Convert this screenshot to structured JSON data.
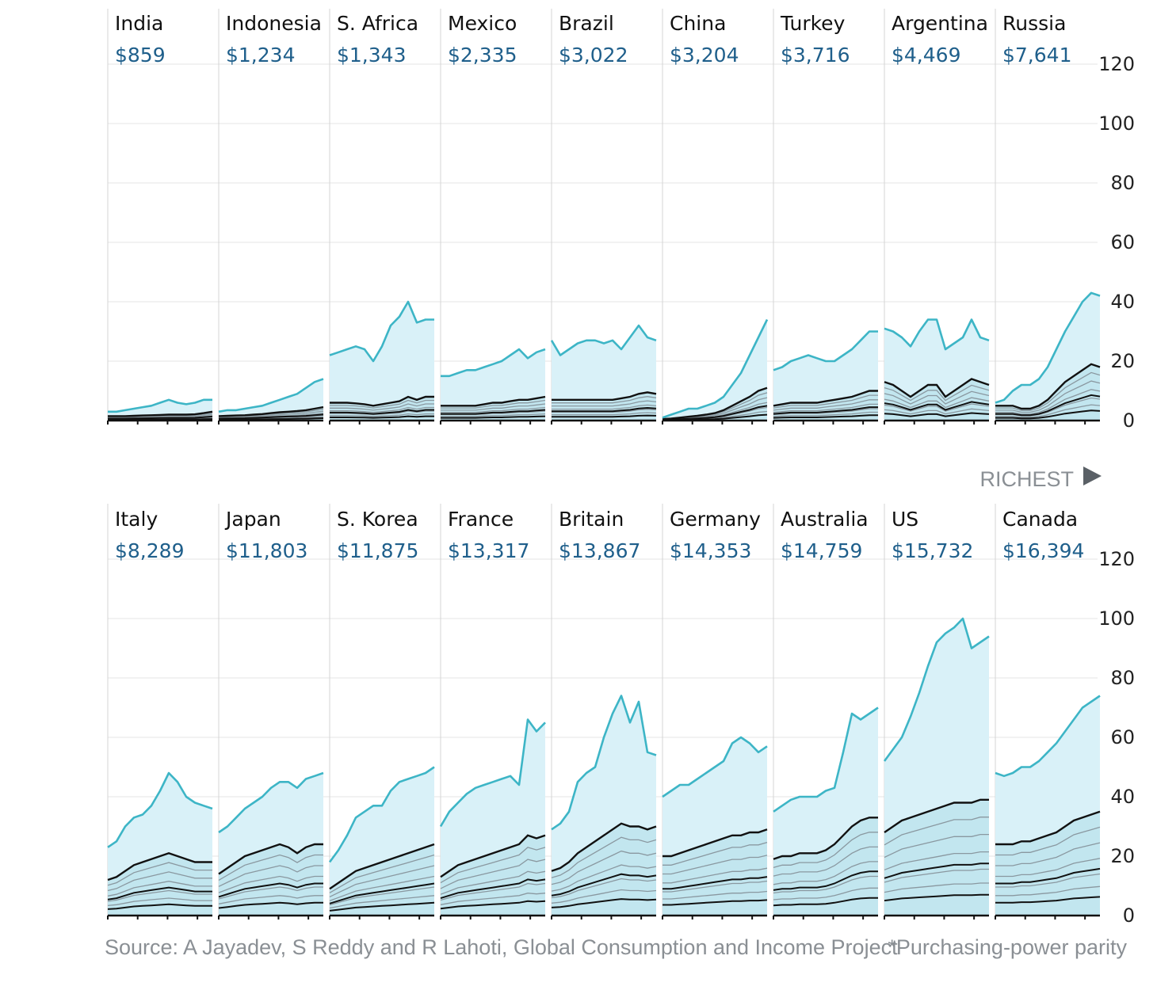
{
  "chart_data": {
    "type": "area",
    "y_ticks": [
      0,
      20,
      40,
      60,
      80,
      100,
      120
    ],
    "ylim": [
      0,
      120
    ],
    "grid": true,
    "richest_label": "RICHEST",
    "colors": {
      "top_line": "#3db5c6",
      "fill": "#d9f1f8",
      "inner_fill": "#c2e6ef",
      "dark_line": "#111111",
      "grey_line": "#8a98a0"
    },
    "source": "Source: A Jayadev, S Reddy and R Lahoti, Global Consumption and Income Project",
    "footnote": "*Purchasing-power parity",
    "rows": [
      {
        "panels": [
          {
            "country": "India",
            "value": "$859",
            "series": [
              [
                3,
                3,
                3.5,
                4,
                4.5,
                5,
                6,
                7,
                6,
                5.5,
                6,
                7,
                7
              ],
              [
                1.5,
                1.5,
                1.5,
                1.6,
                1.7,
                1.8,
                1.9,
                2,
                2,
                2,
                2.1,
                2.5,
                3
              ]
            ]
          },
          {
            "country": "Indonesia",
            "value": "$1,234",
            "series": [
              [
                3,
                3.5,
                3.5,
                4,
                4.5,
                5,
                6,
                7,
                8,
                9,
                11,
                13,
                14
              ],
              [
                1.5,
                1.6,
                1.7,
                1.8,
                2,
                2.2,
                2.5,
                2.8,
                3,
                3.2,
                3.5,
                4,
                4.5
              ]
            ]
          },
          {
            "country": "S. Africa",
            "value": "$1,343",
            "series": [
              [
                22,
                23,
                24,
                25,
                24,
                20,
                25,
                32,
                35,
                40,
                33,
                34,
                34
              ],
              [
                6,
                6,
                6,
                5.8,
                5.5,
                5,
                5.5,
                6,
                6.5,
                8,
                7,
                8,
                8
              ]
            ]
          },
          {
            "country": "Mexico",
            "value": "$2,335",
            "series": [
              [
                15,
                15,
                16,
                17,
                17,
                18,
                19,
                20,
                22,
                24,
                21,
                23,
                24
              ],
              [
                5,
                5,
                5,
                5,
                5,
                5.5,
                6,
                6,
                6.5,
                7,
                7,
                7.5,
                8
              ]
            ]
          },
          {
            "country": "Brazil",
            "value": "$3,022",
            "series": [
              [
                27,
                22,
                24,
                26,
                27,
                27,
                26,
                27,
                24,
                28,
                32,
                28,
                27
              ],
              [
                7,
                7,
                7,
                7,
                7,
                7,
                7,
                7,
                7.5,
                8,
                9,
                9.5,
                9
              ]
            ]
          },
          {
            "country": "China",
            "value": "$3,204",
            "series": [
              [
                1,
                2,
                3,
                4,
                4,
                5,
                6,
                8,
                12,
                16,
                22,
                28,
                34
              ],
              [
                0.5,
                0.7,
                1,
                1.3,
                1.6,
                2,
                2.5,
                3.5,
                5,
                6.5,
                8,
                10,
                11
              ]
            ]
          },
          {
            "country": "Turkey",
            "value": "$3,716",
            "series": [
              [
                17,
                18,
                20,
                21,
                22,
                21,
                20,
                20,
                22,
                24,
                27,
                30,
                30
              ],
              [
                5,
                5.5,
                6,
                6,
                6,
                6,
                6.5,
                7,
                7.5,
                8,
                9,
                10,
                10
              ]
            ]
          },
          {
            "country": "Argentina",
            "value": "$4,469",
            "series": [
              [
                31,
                30,
                28,
                25,
                30,
                34,
                34,
                24,
                26,
                28,
                34,
                28,
                27
              ],
              [
                13,
                12,
                10,
                8,
                10,
                12,
                12,
                8,
                10,
                12,
                14,
                13,
                12
              ]
            ]
          },
          {
            "country": "Russia",
            "value": "$7,641",
            "series": [
              [
                6,
                7,
                10,
                12,
                12,
                14,
                18,
                24,
                30,
                35,
                40,
                43,
                42
              ],
              [
                5,
                5,
                5,
                4,
                4,
                5,
                7,
                10,
                13,
                15,
                17,
                19,
                18
              ]
            ]
          }
        ]
      },
      {
        "panels": [
          {
            "country": "Italy",
            "value": "$8,289",
            "series": [
              [
                23,
                25,
                30,
                33,
                34,
                37,
                42,
                48,
                45,
                40,
                38,
                37,
                36
              ],
              [
                12,
                13,
                15,
                17,
                18,
                19,
                20,
                21,
                20,
                19,
                18,
                18,
                18
              ]
            ]
          },
          {
            "country": "Japan",
            "value": "$11,803",
            "series": [
              [
                28,
                30,
                33,
                36,
                38,
                40,
                43,
                45,
                45,
                43,
                46,
                47,
                48
              ],
              [
                14,
                16,
                18,
                20,
                21,
                22,
                23,
                24,
                23,
                21,
                23,
                24,
                24
              ]
            ]
          },
          {
            "country": "S. Korea",
            "value": "$11,875",
            "series": [
              [
                18,
                22,
                27,
                33,
                35,
                37,
                37,
                42,
                45,
                46,
                47,
                48,
                50
              ],
              [
                9,
                11,
                13,
                15,
                16,
                17,
                18,
                19,
                20,
                21,
                22,
                23,
                24
              ]
            ]
          },
          {
            "country": "France",
            "value": "$13,317",
            "series": [
              [
                30,
                35,
                38,
                41,
                43,
                44,
                45,
                46,
                47,
                44,
                66,
                62,
                65
              ],
              [
                13,
                15,
                17,
                18,
                19,
                20,
                21,
                22,
                23,
                24,
                27,
                26,
                27
              ]
            ]
          },
          {
            "country": "Britain",
            "value": "$13,867",
            "series": [
              [
                29,
                31,
                35,
                45,
                48,
                50,
                60,
                68,
                74,
                65,
                72,
                55,
                54
              ],
              [
                15,
                16,
                18,
                21,
                23,
                25,
                27,
                29,
                31,
                30,
                30,
                29,
                30
              ]
            ]
          },
          {
            "country": "Germany",
            "value": "$14,353",
            "series": [
              [
                40,
                42,
                44,
                44,
                46,
                48,
                50,
                52,
                58,
                60,
                58,
                55,
                57
              ],
              [
                20,
                20,
                21,
                22,
                23,
                24,
                25,
                26,
                27,
                27,
                28,
                28,
                29
              ]
            ]
          },
          {
            "country": "Australia",
            "value": "$14,759",
            "series": [
              [
                35,
                37,
                39,
                40,
                40,
                40,
                42,
                43,
                55,
                68,
                66,
                68,
                70
              ],
              [
                19,
                20,
                20,
                21,
                21,
                21,
                22,
                24,
                27,
                30,
                32,
                33,
                33
              ]
            ]
          },
          {
            "country": "US",
            "value": "$15,732",
            "series": [
              [
                52,
                56,
                60,
                67,
                75,
                84,
                92,
                95,
                97,
                100,
                90,
                92,
                94
              ],
              [
                28,
                30,
                32,
                33,
                34,
                35,
                36,
                37,
                38,
                38,
                38,
                39,
                39
              ]
            ]
          },
          {
            "country": "Canada",
            "value": "$16,394",
            "series": [
              [
                48,
                47,
                48,
                50,
                50,
                52,
                55,
                58,
                62,
                66,
                70,
                72,
                74
              ],
              [
                24,
                24,
                24,
                25,
                25,
                26,
                27,
                28,
                30,
                32,
                33,
                34,
                35
              ]
            ]
          }
        ]
      }
    ]
  }
}
